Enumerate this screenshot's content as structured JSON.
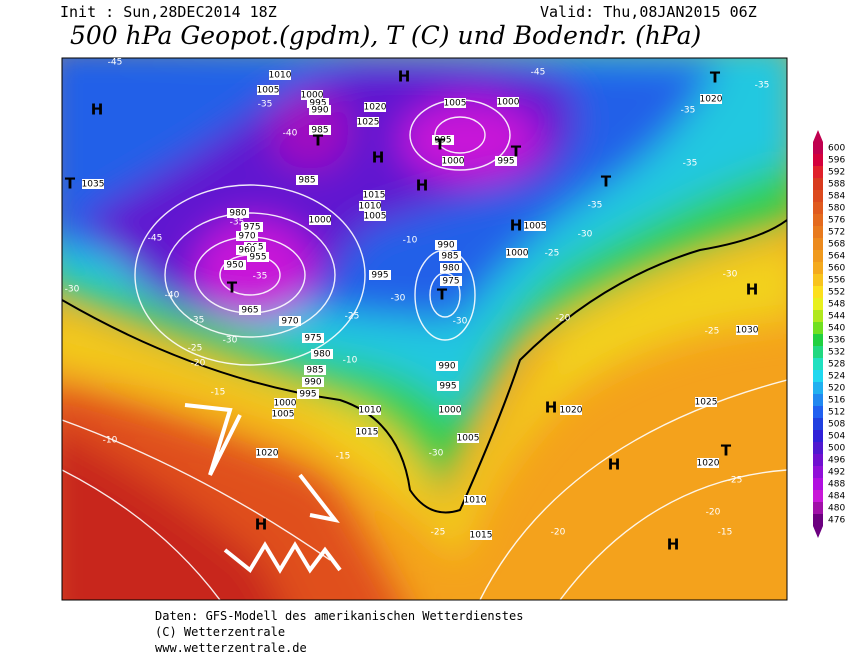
{
  "header": {
    "init": "Init : Sun,28DEC2014 18Z",
    "valid": "Valid: Thu,08JAN2015 06Z",
    "title": "500 hPa Geopot.(gpdm), T (C) und Bodendr. (hPa)"
  },
  "legend": {
    "labels": [
      "600",
      "596",
      "592",
      "588",
      "584",
      "580",
      "576",
      "572",
      "568",
      "564",
      "560",
      "556",
      "552",
      "548",
      "544",
      "540",
      "536",
      "532",
      "528",
      "524",
      "520",
      "516",
      "512",
      "508",
      "504",
      "500",
      "496",
      "492",
      "488",
      "484",
      "480",
      "476"
    ],
    "colors": [
      "#c0004f",
      "#d4003c",
      "#e0202a",
      "#d83a1e",
      "#dc4a1e",
      "#e05a1e",
      "#e46a1e",
      "#e87a1e",
      "#ec8a1e",
      "#f09a1e",
      "#f4aa1e",
      "#f8c41e",
      "#fce01e",
      "#e8f01e",
      "#b0e81e",
      "#70e020",
      "#20d040",
      "#20d880",
      "#20e0c0",
      "#20d8f0",
      "#20b0f0",
      "#2088f0",
      "#2060f0",
      "#2040e0",
      "#3020d8",
      "#5018d0",
      "#7010d0",
      "#9010d8",
      "#b010e0",
      "#c818d8",
      "#a010a8",
      "#6c0080"
    ]
  },
  "map": {
    "pressure_labels": [
      "1010",
      "1005",
      "1000",
      "995",
      "990",
      "985",
      "985",
      "1020",
      "1025",
      "1005",
      "1000",
      "995",
      "1000",
      "995",
      "1015",
      "1010",
      "1005",
      "1000",
      "1035",
      "980",
      "975",
      "970",
      "965",
      "960",
      "955",
      "950",
      "965",
      "970",
      "975",
      "980",
      "985",
      "990",
      "995",
      "1000",
      "1005",
      "1010",
      "1015",
      "1020",
      "990",
      "985",
      "980",
      "975",
      "995",
      "1005",
      "1000",
      "990",
      "995",
      "1000",
      "1005",
      "1010",
      "1015",
      "1020",
      "1025",
      "1030",
      "1020",
      "1020"
    ],
    "temperature_labels": [
      "-45",
      "-40",
      "-35",
      "-35",
      "-35",
      "-45",
      "-40",
      "-35",
      "-30",
      "-25",
      "-20",
      "-15",
      "-10",
      "-30",
      "-30",
      "-25",
      "-10",
      "-15",
      "-30",
      "-25",
      "-20",
      "-25",
      "-30",
      "-35",
      "-35",
      "-35",
      "-30",
      "-25",
      "-25",
      "-20",
      "-15",
      "-20",
      "-45",
      "-35",
      "-10",
      "-30"
    ],
    "highs": [
      "H",
      "H",
      "H",
      "H",
      "H",
      "H",
      "H",
      "H",
      "H",
      "H"
    ],
    "lows": [
      "T",
      "T",
      "T",
      "T",
      "T",
      "T",
      "T",
      "T",
      "T"
    ]
  },
  "footer": {
    "source": "Daten: GFS-Modell des amerikanischen Wetterdienstes",
    "copyright": "(C) Wetterzentrale",
    "url": "www.wetterzentrale.de"
  }
}
